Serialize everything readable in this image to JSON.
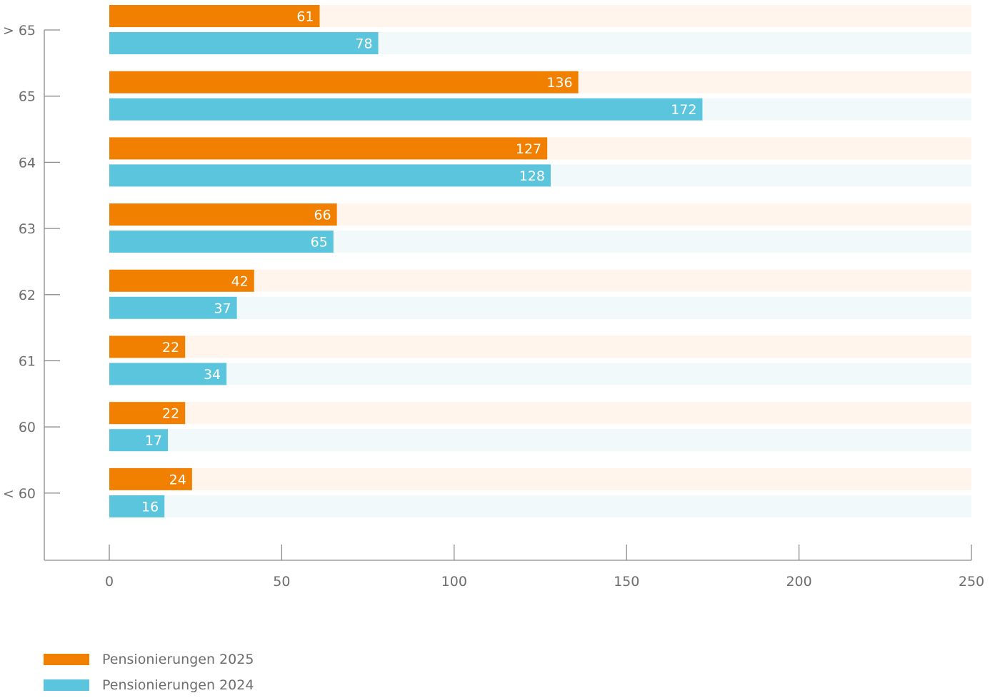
{
  "chart_data": {
    "type": "bar",
    "orientation": "horizontal",
    "categories": [
      "> 65",
      "65",
      "64",
      "63",
      "62",
      "61",
      "60",
      "< 60"
    ],
    "series": [
      {
        "name": "Pensionierungen 2025",
        "values": [
          61,
          136,
          127,
          66,
          42,
          22,
          22,
          24
        ],
        "color": "#f28000",
        "track_color": "#fff5ec"
      },
      {
        "name": "Pensionierungen 2024",
        "values": [
          78,
          172,
          128,
          65,
          37,
          34,
          17,
          16
        ],
        "color": "#5bc5dd",
        "track_color": "#f2f9fb"
      }
    ],
    "xlim": [
      0,
      250
    ],
    "xticks": [
      0,
      50,
      100,
      150,
      200,
      250
    ],
    "xlabel": "",
    "ylabel": "",
    "title": "",
    "grid": false,
    "legend": "bottom-left",
    "axis_color": "#8a8a8a",
    "text_color": "#6e6e6e"
  }
}
